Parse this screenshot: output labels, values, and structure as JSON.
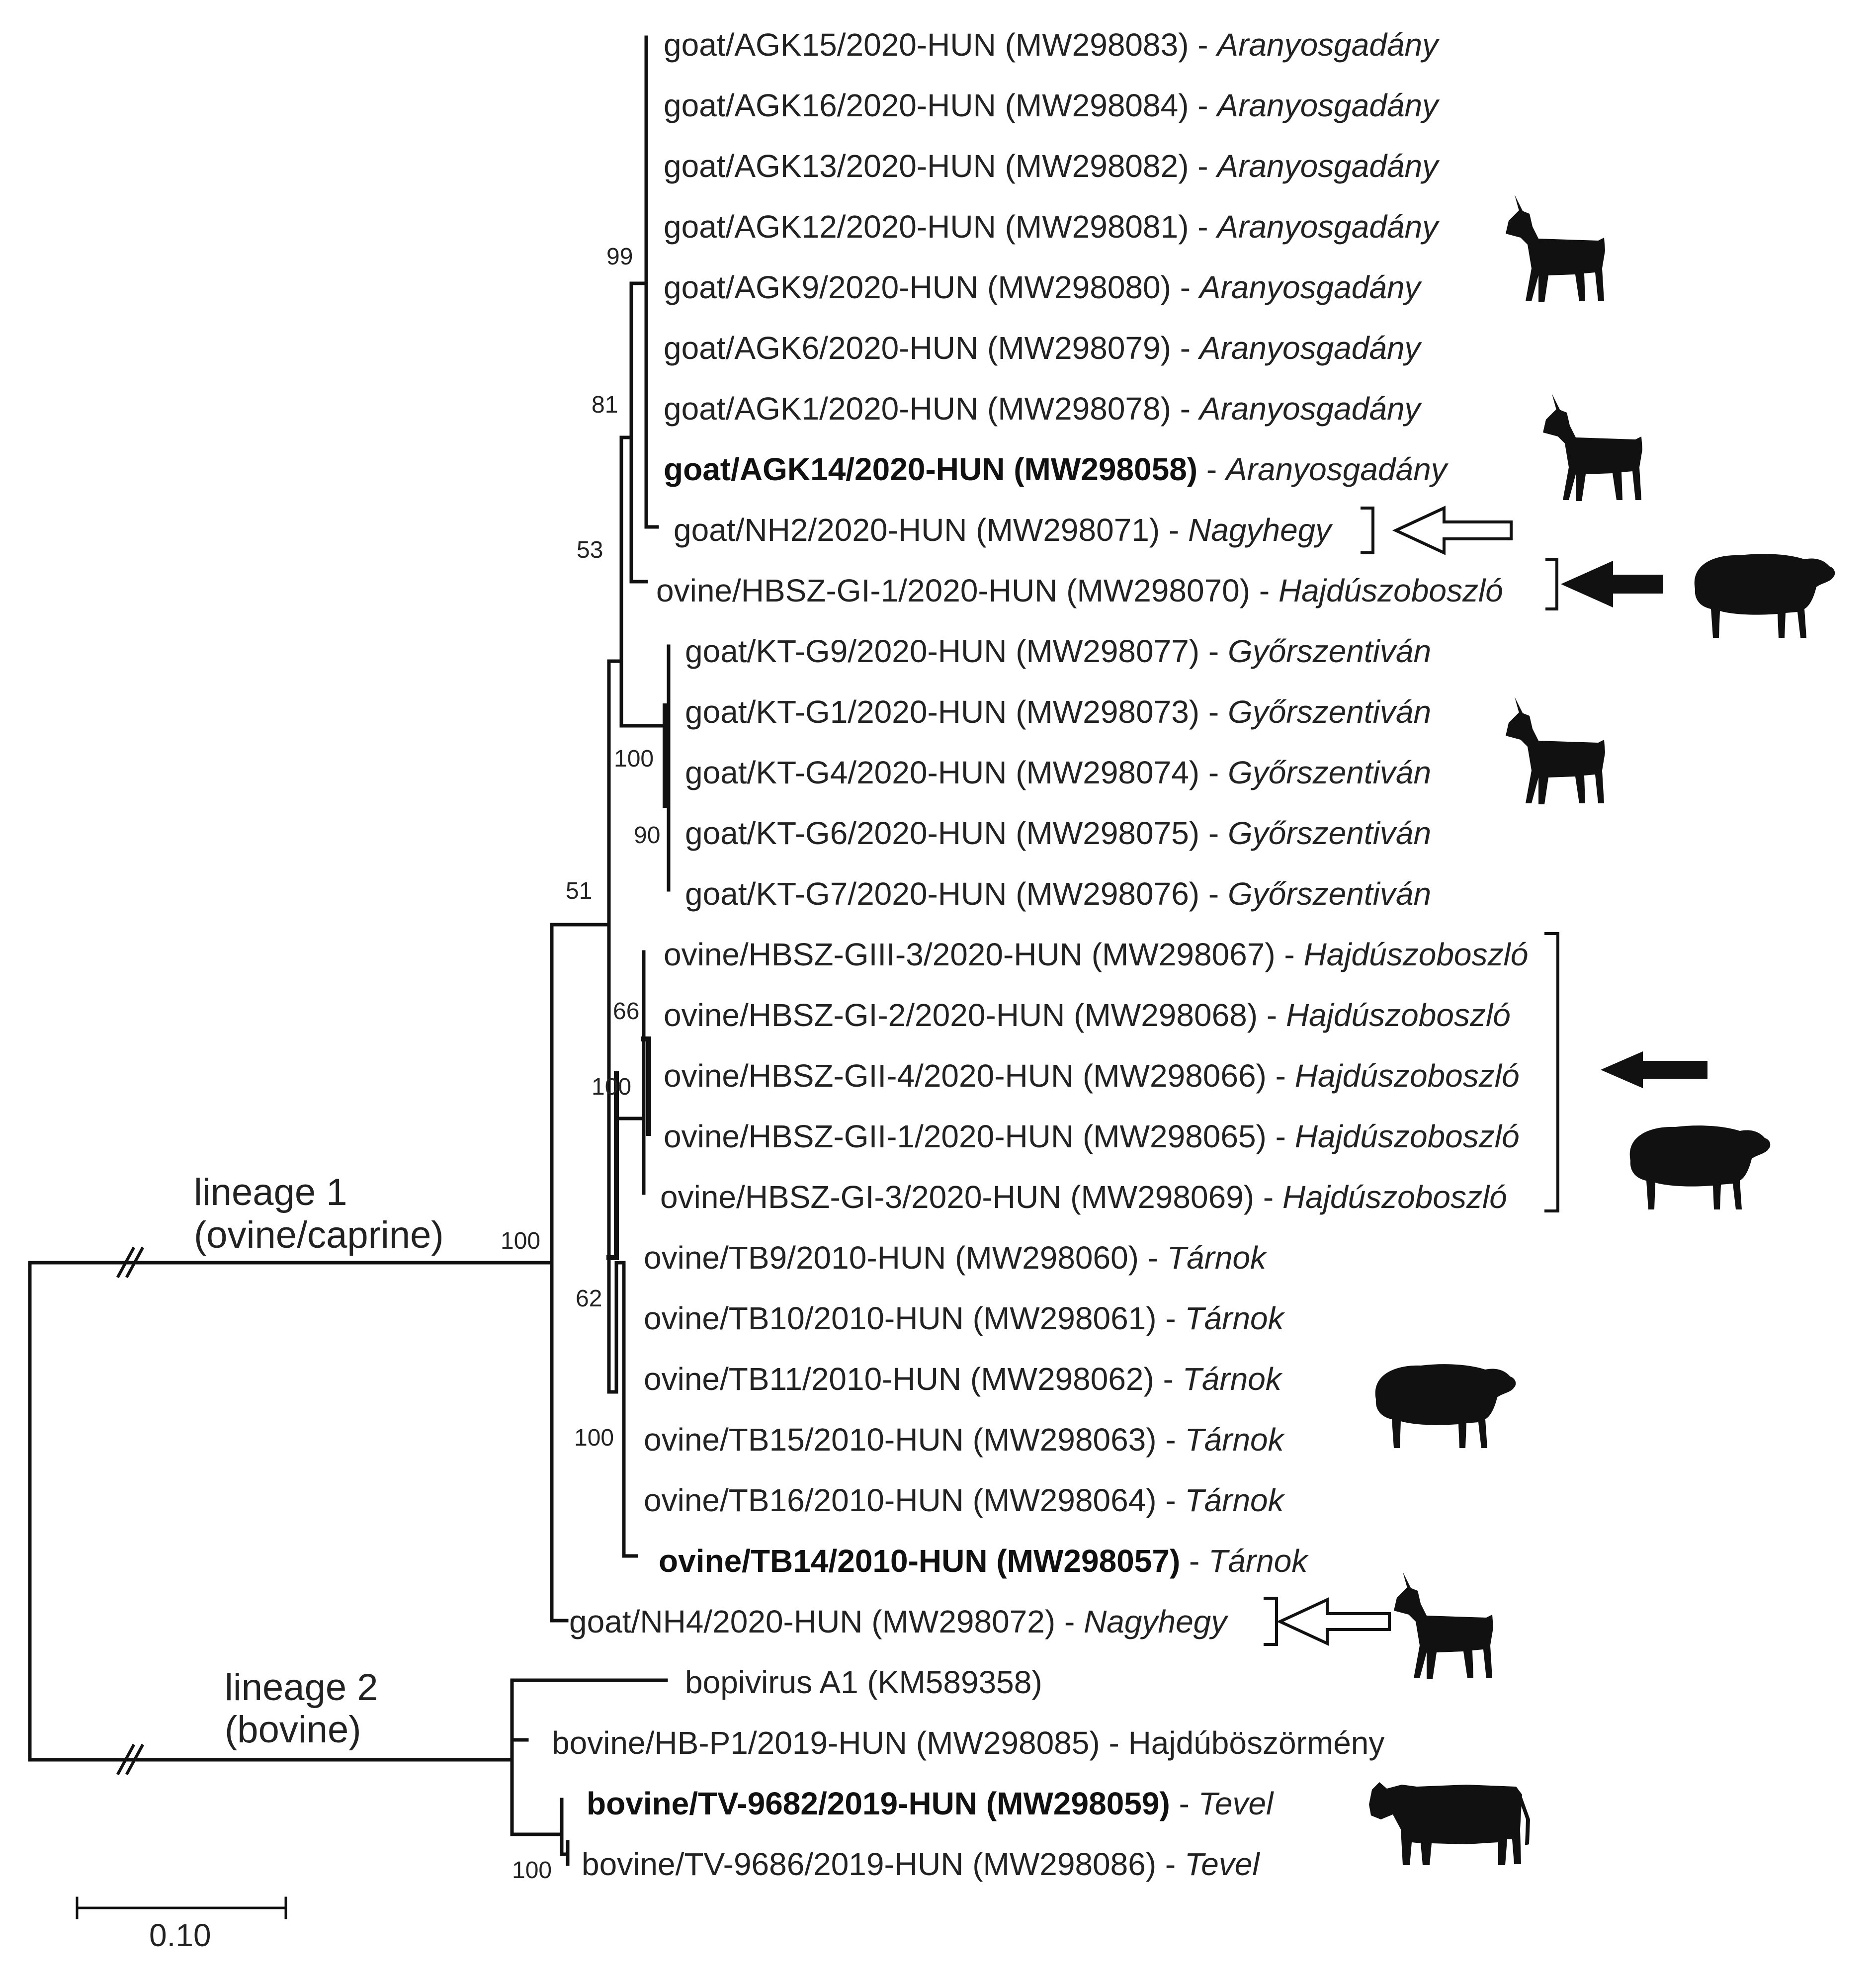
{
  "taxa": [
    {
      "name": "goat/AGK15/2020-HUN",
      "acc": "(MW298083)",
      "loc": "Aranyosgadány",
      "bold": false,
      "italic": true
    },
    {
      "name": "goat/AGK16/2020-HUN",
      "acc": "(MW298084)",
      "loc": "Aranyosgadány",
      "bold": false,
      "italic": true
    },
    {
      "name": "goat/AGK13/2020-HUN",
      "acc": "(MW298082)",
      "loc": "Aranyosgadány",
      "bold": false,
      "italic": true
    },
    {
      "name": "goat/AGK12/2020-HUN",
      "acc": "(MW298081)",
      "loc": "Aranyosgadány",
      "bold": false,
      "italic": true
    },
    {
      "name": "goat/AGK9/2020-HUN",
      "acc": "(MW298080)",
      "loc": "Aranyosgadány",
      "bold": false,
      "italic": true
    },
    {
      "name": "goat/AGK6/2020-HUN",
      "acc": "(MW298079)",
      "loc": "Aranyosgadány",
      "bold": false,
      "italic": true
    },
    {
      "name": "goat/AGK1/2020-HUN",
      "acc": "(MW298078)",
      "loc": "Aranyosgadány",
      "bold": false,
      "italic": true
    },
    {
      "name": "goat/AGK14/2020-HUN",
      "acc": "(MW298058)",
      "loc": "Aranyosgadány",
      "bold": true,
      "italic": true
    },
    {
      "name": "goat/NH2/2020-HUN",
      "acc": "(MW298071)",
      "loc": "Nagyhegy",
      "bold": false,
      "italic": true
    },
    {
      "name": "ovine/HBSZ-GI-1/2020-HUN",
      "acc": "(MW298070)",
      "loc": "Hajdúszoboszló",
      "bold": false,
      "italic": true
    },
    {
      "name": "goat/KT-G9/2020-HUN",
      "acc": "(MW298077)",
      "loc": "Győrszentiván",
      "bold": false,
      "italic": true
    },
    {
      "name": "goat/KT-G1/2020-HUN",
      "acc": "(MW298073)",
      "loc": "Győrszentiván",
      "bold": false,
      "italic": true
    },
    {
      "name": "goat/KT-G4/2020-HUN",
      "acc": "(MW298074)",
      "loc": "Győrszentiván",
      "bold": false,
      "italic": true
    },
    {
      "name": "goat/KT-G6/2020-HUN",
      "acc": "(MW298075)",
      "loc": "Győrszentiván",
      "bold": false,
      "italic": true
    },
    {
      "name": "goat/KT-G7/2020-HUN",
      "acc": "(MW298076)",
      "loc": "Győrszentiván",
      "bold": false,
      "italic": true
    },
    {
      "name": "ovine/HBSZ-GIII-3/2020-HUN",
      "acc": "(MW298067)",
      "loc": "Hajdúszoboszló",
      "bold": false,
      "italic": true
    },
    {
      "name": "ovine/HBSZ-GI-2/2020-HUN",
      "acc": "(MW298068)",
      "loc": "Hajdúszoboszló",
      "bold": false,
      "italic": true
    },
    {
      "name": "ovine/HBSZ-GII-4/2020-HUN",
      "acc": "(MW298066)",
      "loc": "Hajdúszoboszló",
      "bold": false,
      "italic": true
    },
    {
      "name": "ovine/HBSZ-GII-1/2020-HUN",
      "acc": "(MW298065)",
      "loc": "Hajdúszoboszló",
      "bold": false,
      "italic": true
    },
    {
      "name": "ovine/HBSZ-GI-3/2020-HUN",
      "acc": "(MW298069)",
      "loc": "Hajdúszoboszló",
      "bold": false,
      "italic": true
    },
    {
      "name": "ovine/TB9/2010-HUN",
      "acc": "(MW298060)",
      "loc": "Tárnok",
      "bold": false,
      "italic": true
    },
    {
      "name": "ovine/TB10/2010-HUN",
      "acc": "(MW298061)",
      "loc": "Tárnok",
      "bold": false,
      "italic": true
    },
    {
      "name": "ovine/TB11/2010-HUN",
      "acc": "(MW298062)",
      "loc": "Tárnok",
      "bold": false,
      "italic": true
    },
    {
      "name": "ovine/TB15/2010-HUN",
      "acc": "(MW298063)",
      "loc": "Tárnok",
      "bold": false,
      "italic": true
    },
    {
      "name": "ovine/TB16/2010-HUN",
      "acc": "(MW298064)",
      "loc": "Tárnok",
      "bold": false,
      "italic": true
    },
    {
      "name": "ovine/TB14/2010-HUN",
      "acc": "(MW298057)",
      "loc": "Tárnok",
      "bold": true,
      "italic": true
    },
    {
      "name": "goat/NH4/2020-HUN",
      "acc": "(MW298072)",
      "loc": "Nagyhegy",
      "bold": false,
      "italic": true
    },
    {
      "name": "bopivirus A1",
      "acc": "(KM589358)",
      "loc": "",
      "bold": false,
      "italic": false
    },
    {
      "name": "bovine/HB-P1/2019-HUN",
      "acc": "(MW298085)",
      "loc": "Hajdúböszörmény",
      "bold": false,
      "italic": false
    },
    {
      "name": "bovine/TV-9682/2019-HUN",
      "acc": "(MW298059)",
      "loc": "Tevel",
      "bold": true,
      "italic": true
    },
    {
      "name": "bovine/TV-9686/2019-HUN",
      "acc": "(MW298086)",
      "loc": "Tevel",
      "bold": false,
      "italic": true
    }
  ],
  "bootstrap": [
    "99",
    "81",
    "53",
    "100",
    "90",
    "51",
    "66",
    "100",
    "62",
    "100",
    "100",
    "100"
  ],
  "lineages": {
    "l1_line1": "lineage 1",
    "l1_line2": "(ovine/caprine)",
    "l2_line1": "lineage 2",
    "l2_line2": "(bovine)"
  },
  "scale": {
    "label": "0.10"
  },
  "icons": [
    "goat-silhouette",
    "goat-silhouette",
    "sheep-silhouette",
    "goat-silhouette",
    "sheep-silhouette",
    "sheep-silhouette",
    "goat-silhouette",
    "cow-silhouette"
  ],
  "colors": {
    "ink": "#111111",
    "arrow_fill": "#111111",
    "open_arrow_fill": "#ffffff"
  }
}
